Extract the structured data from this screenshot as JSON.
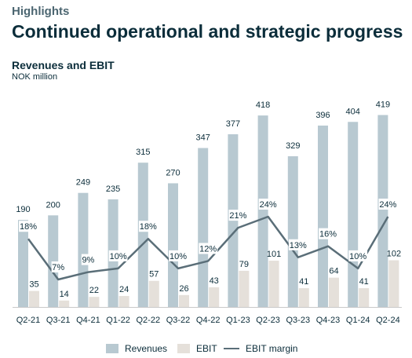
{
  "header": {
    "section_label": "Highlights",
    "title": "Continued operational and strategic progress"
  },
  "colors": {
    "revenues": "#b8c9d1",
    "ebit": "#e5e0da",
    "ebit_margin": "#5a6e78",
    "text": "#0b2d3a"
  },
  "chart_data": {
    "type": "bar",
    "title": "Revenues and EBIT",
    "subtitle": "NOK million",
    "categories": [
      "Q2-21",
      "Q3-21",
      "Q4-21",
      "Q1-22",
      "Q2-22",
      "Q3-22",
      "Q4-22",
      "Q1-23",
      "Q2-23",
      "Q3-23",
      "Q4-23",
      "Q1-24",
      "Q2-24"
    ],
    "series": [
      {
        "name": "Revenues",
        "type": "bar",
        "values": [
          190,
          200,
          249,
          235,
          315,
          270,
          347,
          377,
          418,
          329,
          396,
          404,
          419
        ]
      },
      {
        "name": "EBIT",
        "type": "bar",
        "values": [
          35,
          14,
          22,
          24,
          57,
          26,
          43,
          79,
          101,
          41,
          64,
          41,
          102
        ]
      },
      {
        "name": "EBIT margin",
        "type": "line",
        "values": [
          18,
          7,
          9,
          10,
          18,
          10,
          12,
          21,
          24,
          13,
          16,
          10,
          24
        ],
        "labels": [
          "18%",
          "7%",
          "9%",
          "10%",
          "18%",
          "10%",
          "12%",
          "21%",
          "24%",
          "13%",
          "16%",
          "10%",
          "24%"
        ]
      }
    ],
    "legend": {
      "position": "bottom",
      "items": [
        "Revenues",
        "EBIT",
        "EBIT margin"
      ]
    }
  }
}
